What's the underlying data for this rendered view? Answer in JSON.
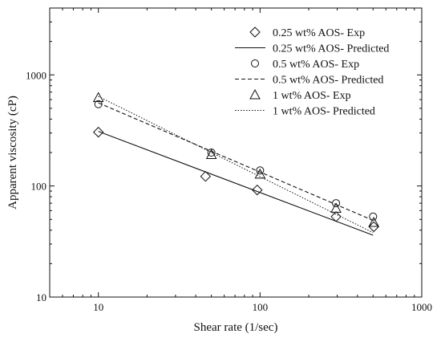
{
  "chart_data": {
    "type": "scatter",
    "title": "",
    "xlabel": "Shear rate (1/sec)",
    "ylabel": "Apparent viscosity (cP)",
    "x_scale": "log",
    "y_scale": "log",
    "xlim": [
      5,
      1000
    ],
    "ylim": [
      10,
      4000
    ],
    "x_ticks": [
      {
        "value": 10,
        "label": "10"
      },
      {
        "value": 100,
        "label": "100"
      },
      {
        "value": 1000,
        "label": "1000"
      }
    ],
    "y_ticks": [
      {
        "value": 10,
        "label": "10"
      },
      {
        "value": 100,
        "label": "100"
      },
      {
        "value": 1000,
        "label": "1000"
      }
    ],
    "grid": false,
    "legend_position": "top-right",
    "series": [
      {
        "name": "0.25 wt% AOS- Exp",
        "kind": "markers",
        "marker": "diamond",
        "x": [
          10,
          46,
          96,
          295,
          505
        ],
        "y": [
          305,
          122,
          92,
          53,
          43
        ]
      },
      {
        "name": "0.25 wt% AOS- Predicted",
        "kind": "line",
        "dash": "solid",
        "x": [
          10,
          500
        ],
        "y": [
          310,
          36
        ]
      },
      {
        "name": "0.5 wt% AOS- Exp",
        "kind": "markers",
        "marker": "circle",
        "x": [
          10,
          50,
          100,
          295,
          500
        ],
        "y": [
          545,
          200,
          138,
          70,
          53
        ]
      },
      {
        "name": "0.5 wt% AOS- Predicted",
        "kind": "line",
        "dash": "dashed",
        "x": [
          10,
          500
        ],
        "y": [
          560,
          49
        ]
      },
      {
        "name": "1 wt% AOS- Exp",
        "kind": "markers",
        "marker": "triangle",
        "x": [
          10,
          50,
          100,
          295,
          505
        ],
        "y": [
          625,
          192,
          128,
          63,
          47
        ]
      },
      {
        "name": "1 wt% AOS- Predicted",
        "kind": "line",
        "dash": "dotted",
        "x": [
          10,
          500
        ],
        "y": [
          640,
          38
        ]
      }
    ]
  }
}
